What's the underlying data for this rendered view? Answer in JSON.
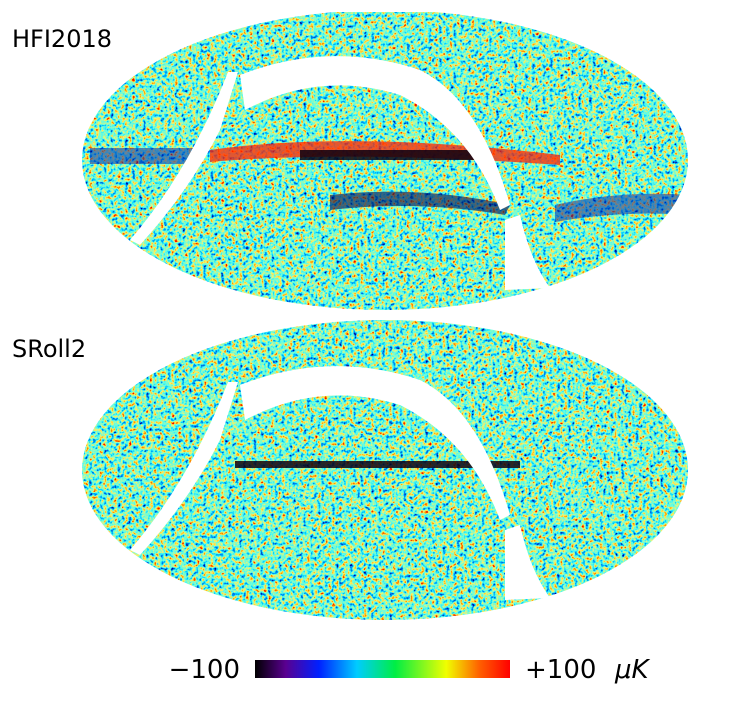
{
  "panels": [
    {
      "label": "HFI2018"
    },
    {
      "label": "SRoll2"
    }
  ],
  "colorbar": {
    "min_label": "−100",
    "max_label": "+100",
    "unit": "μK"
  }
}
